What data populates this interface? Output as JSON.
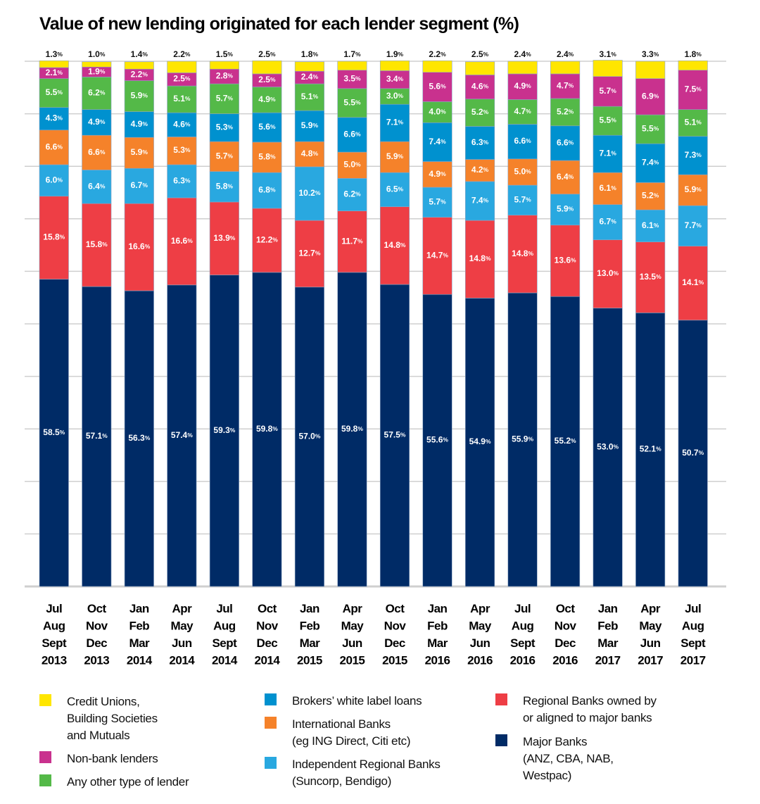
{
  "chart_data": {
    "type": "bar",
    "stacked": true,
    "title": "Value of new lending originated for each lender segment (%)",
    "xlabel": "",
    "ylabel": "",
    "ylim": [
      0,
      100
    ],
    "grid": true,
    "gridline_step": 10,
    "value_suffix": "%",
    "legend_position": "bottom",
    "categories": [
      [
        "Jul",
        "Aug",
        "Sept",
        "2013"
      ],
      [
        "Oct",
        "Nov",
        "Dec",
        "2013"
      ],
      [
        "Jan",
        "Feb",
        "Mar",
        "2014"
      ],
      [
        "Apr",
        "May",
        "Jun",
        "2014"
      ],
      [
        "Jul",
        "Aug",
        "Sept",
        "2014"
      ],
      [
        "Oct",
        "Nov",
        "Dec",
        "2014"
      ],
      [
        "Jan",
        "Feb",
        "Mar",
        "2015"
      ],
      [
        "Apr",
        "May",
        "Jun",
        "2015"
      ],
      [
        "Oct",
        "Nov",
        "Dec",
        "2015"
      ],
      [
        "Jan",
        "Feb",
        "Mar",
        "2016"
      ],
      [
        "Apr",
        "May",
        "Jun",
        "2016"
      ],
      [
        "Jul",
        "Aug",
        "Sept",
        "2016"
      ],
      [
        "Oct",
        "Nov",
        "Dec",
        "2016"
      ],
      [
        "Jan",
        "Feb",
        "Mar",
        "2017"
      ],
      [
        "Apr",
        "May",
        "Jun",
        "2017"
      ],
      [
        "Jul",
        "Aug",
        "Sept",
        "2017"
      ]
    ],
    "series": [
      {
        "name": "Major Banks (ANZ, CBA, NAB, Westpac)",
        "color": "#002b66",
        "values": [
          58.5,
          57.1,
          56.3,
          57.4,
          59.3,
          59.8,
          57.0,
          59.8,
          57.5,
          55.6,
          54.9,
          55.9,
          55.2,
          53.0,
          52.1,
          50.7
        ]
      },
      {
        "name": "Regional Banks owned by or aligned to major banks",
        "color": "#ee3e45",
        "values": [
          15.8,
          15.8,
          16.6,
          16.6,
          13.9,
          12.2,
          12.7,
          11.7,
          14.8,
          14.7,
          14.8,
          14.8,
          13.6,
          13.0,
          13.5,
          14.1
        ]
      },
      {
        "name": "Independent Regional Banks (Suncorp, Bendigo)",
        "color": "#29a8e0",
        "values": [
          6.0,
          6.4,
          6.7,
          6.3,
          5.8,
          6.8,
          10.2,
          6.2,
          6.5,
          5.7,
          7.4,
          5.7,
          5.9,
          6.7,
          6.1,
          7.7
        ]
      },
      {
        "name": "International Banks (eg ING Direct, Citi etc)",
        "color": "#f5822a",
        "values": [
          6.6,
          6.6,
          5.9,
          5.3,
          5.7,
          5.8,
          4.8,
          5.0,
          5.9,
          4.9,
          4.2,
          5.0,
          6.4,
          6.1,
          5.2,
          5.9
        ]
      },
      {
        "name": "Brokers' white label loans",
        "color": "#0091cf",
        "values": [
          4.3,
          4.9,
          4.9,
          4.6,
          5.3,
          5.6,
          5.9,
          6.6,
          7.1,
          7.4,
          6.3,
          6.6,
          6.6,
          7.1,
          7.4,
          7.3
        ]
      },
      {
        "name": "Any other type of lender",
        "color": "#54b948",
        "values": [
          5.5,
          6.2,
          5.9,
          5.1,
          5.7,
          4.9,
          5.1,
          5.5,
          3.0,
          4.0,
          5.2,
          4.7,
          5.2,
          5.5,
          5.5,
          5.1
        ]
      },
      {
        "name": "Non-bank lenders",
        "color": "#c9318e",
        "values": [
          2.1,
          1.9,
          2.2,
          2.5,
          2.8,
          2.5,
          2.4,
          3.5,
          3.4,
          5.6,
          4.6,
          4.9,
          4.7,
          5.7,
          6.9,
          7.5
        ]
      },
      {
        "name": "Credit Unions, Building Societies and Mutuals",
        "color": "#ffe600",
        "values": [
          1.3,
          1.0,
          1.4,
          2.2,
          1.5,
          2.5,
          1.8,
          1.7,
          1.9,
          2.2,
          2.5,
          2.4,
          2.4,
          3.1,
          3.3,
          1.8
        ]
      }
    ]
  },
  "legend": {
    "items": [
      {
        "lines": [
          "Credit Unions,",
          "Building Societies",
          "and Mutuals"
        ],
        "color": "#ffe600"
      },
      {
        "lines": [
          "Non-bank lenders"
        ],
        "color": "#c9318e"
      },
      {
        "lines": [
          "Any other type of lender"
        ],
        "color": "#54b948"
      },
      {
        "lines": [
          "Brokers’ white label loans"
        ],
        "color": "#0091cf"
      },
      {
        "lines": [
          "International Banks",
          "(eg ING Direct, Citi etc)"
        ],
        "color": "#f5822a"
      },
      {
        "lines": [
          "Independent Regional Banks",
          "(Suncorp, Bendigo)"
        ],
        "color": "#29a8e0"
      },
      {
        "lines": [
          "Regional Banks owned by",
          "or aligned to major banks"
        ],
        "color": "#ee3e45"
      },
      {
        "lines": [
          "Major Banks",
          "(ANZ, CBA, NAB,",
          "Westpac)"
        ],
        "color": "#002b66"
      }
    ]
  }
}
